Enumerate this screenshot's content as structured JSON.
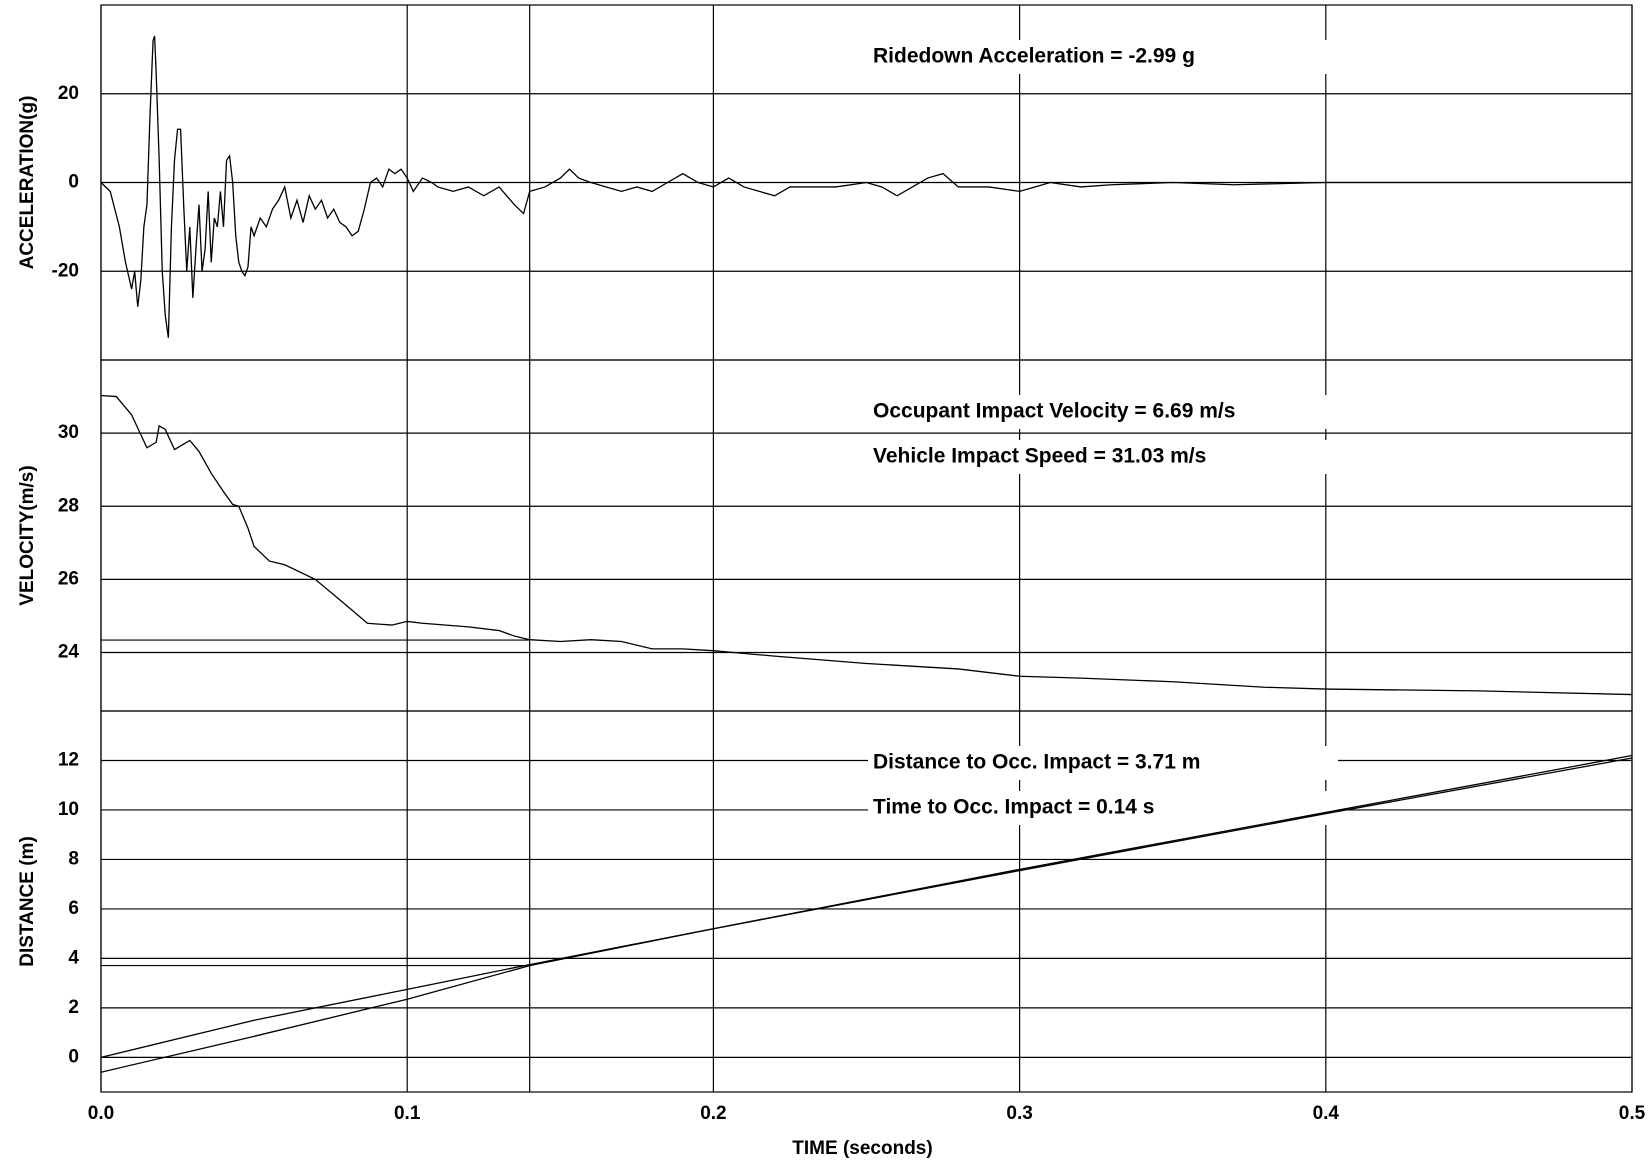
{
  "chart_data": [
    {
      "type": "line",
      "y_label": "ACCELERATION(g)",
      "annotations": [
        "Ridedown Acceleration = -2.99 g"
      ],
      "xlim": [
        0,
        0.5
      ],
      "ylim": [
        -40,
        40
      ],
      "yticks": [
        -20,
        0,
        20
      ],
      "grid": true,
      "reference": {
        "x": 0.14
      },
      "x": [
        0,
        0.003,
        0.006,
        0.008,
        0.01,
        0.011,
        0.012,
        0.013,
        0.014,
        0.015,
        0.016,
        0.017,
        0.0175,
        0.018,
        0.019,
        0.02,
        0.021,
        0.022,
        0.023,
        0.024,
        0.025,
        0.026,
        0.027,
        0.028,
        0.029,
        0.03,
        0.031,
        0.032,
        0.033,
        0.034,
        0.035,
        0.036,
        0.037,
        0.038,
        0.039,
        0.04,
        0.041,
        0.042,
        0.043,
        0.044,
        0.045,
        0.046,
        0.047,
        0.048,
        0.049,
        0.05,
        0.052,
        0.054,
        0.056,
        0.058,
        0.06,
        0.062,
        0.064,
        0.066,
        0.068,
        0.07,
        0.072,
        0.074,
        0.076,
        0.078,
        0.08,
        0.082,
        0.084,
        0.086,
        0.088,
        0.09,
        0.092,
        0.094,
        0.096,
        0.098,
        0.1,
        0.102,
        0.105,
        0.108,
        0.11,
        0.115,
        0.12,
        0.125,
        0.13,
        0.135,
        0.138,
        0.14,
        0.145,
        0.15,
        0.153,
        0.156,
        0.16,
        0.165,
        0.17,
        0.175,
        0.18,
        0.185,
        0.19,
        0.195,
        0.2,
        0.205,
        0.21,
        0.215,
        0.22,
        0.225,
        0.23,
        0.24,
        0.25,
        0.255,
        0.26,
        0.265,
        0.27,
        0.275,
        0.28,
        0.29,
        0.3,
        0.305,
        0.31,
        0.32,
        0.33,
        0.35,
        0.37,
        0.4,
        0.42,
        0.45,
        0.5
      ],
      "series": [
        {
          "color": "#000000",
          "values": [
            0,
            -2,
            -10,
            -18,
            -24,
            -20,
            -28,
            -22,
            -10,
            -5,
            15,
            32,
            33,
            25,
            5,
            -20,
            -30,
            -35,
            -10,
            5,
            12,
            12,
            -5,
            -20,
            -10,
            -26,
            -15,
            -5,
            -20,
            -15,
            -2,
            -18,
            -8,
            -10,
            -2,
            -10,
            5,
            6,
            0,
            -12,
            -18,
            -20,
            -21,
            -19,
            -10,
            -12,
            -8,
            -10,
            -6,
            -4,
            -1,
            -8,
            -4,
            -9,
            -3,
            -6,
            -4,
            -8,
            -6,
            -9,
            -10,
            -12,
            -11,
            -6,
            0,
            1,
            -1,
            3,
            2,
            3,
            1,
            -2,
            1,
            0,
            -1,
            -2,
            -1,
            -3,
            -1,
            -5,
            -7,
            -2,
            -1,
            1,
            3,
            1,
            0,
            -1,
            -2,
            -1,
            -2,
            0,
            2,
            0,
            -1,
            1,
            -1,
            -2,
            -3,
            -1,
            -1,
            -1,
            0,
            -1,
            -3,
            -1,
            1,
            2,
            -1,
            -1,
            -2,
            -1,
            0,
            -1,
            -0.5,
            0,
            -0.5,
            0,
            0,
            0,
            0
          ]
        }
      ]
    },
    {
      "type": "line",
      "y_label": "VELOCITY(m/s)",
      "annotations": [
        "Occupant Impact Velocity = 6.69 m/s",
        "Vehicle Impact Speed = 31.03 m/s"
      ],
      "xlim": [
        0,
        0.5
      ],
      "ylim": [
        22.4,
        32
      ],
      "yticks": [
        24,
        26,
        28,
        30
      ],
      "grid": true,
      "reference": {
        "x": 0.14,
        "y": 24.34
      },
      "x": [
        0,
        0.005,
        0.01,
        0.015,
        0.018,
        0.019,
        0.021,
        0.024,
        0.027,
        0.029,
        0.032,
        0.036,
        0.04,
        0.043,
        0.045,
        0.048,
        0.05,
        0.055,
        0.06,
        0.07,
        0.08,
        0.087,
        0.095,
        0.1,
        0.105,
        0.12,
        0.13,
        0.135,
        0.14,
        0.15,
        0.16,
        0.17,
        0.18,
        0.19,
        0.2,
        0.22,
        0.25,
        0.26,
        0.28,
        0.3,
        0.32,
        0.35,
        0.38,
        0.4,
        0.45,
        0.5
      ],
      "series": [
        {
          "color": "#000000",
          "values": [
            31.03,
            31.0,
            30.5,
            29.6,
            29.75,
            30.2,
            30.1,
            29.55,
            29.7,
            29.8,
            29.5,
            28.9,
            28.4,
            28.05,
            28.0,
            27.4,
            26.9,
            26.5,
            26.4,
            26.0,
            25.3,
            24.8,
            24.75,
            24.85,
            24.8,
            24.7,
            24.6,
            24.45,
            24.35,
            24.3,
            24.35,
            24.3,
            24.1,
            24.1,
            24.05,
            23.9,
            23.7,
            23.65,
            23.55,
            23.35,
            23.3,
            23.2,
            23.05,
            23.0,
            22.95,
            22.85
          ]
        }
      ]
    },
    {
      "type": "line",
      "y_label": "DISTANCE (m)",
      "x_label": "TIME (seconds)",
      "annotations": [
        "Distance to Occ. Impact = 3.71 m",
        "Time to Occ. Impact = 0.14 s"
      ],
      "xlim": [
        0,
        0.5
      ],
      "ylim": [
        -1.4,
        14
      ],
      "yticks": [
        0,
        2,
        4,
        6,
        8,
        10,
        12
      ],
      "xticks": [
        {
          "value": 0,
          "label": "0.0"
        },
        0.1,
        0.2,
        0.3,
        0.4,
        0.5
      ],
      "grid": true,
      "reference": {
        "x": 0.14,
        "y": 3.71
      },
      "x": [
        0,
        0.05,
        0.1,
        0.14,
        0.2,
        0.3,
        0.4,
        0.5
      ],
      "series": [
        {
          "color": "#000000",
          "values": [
            0,
            1.5,
            2.75,
            3.75,
            5.2,
            7.55,
            9.85,
            12.1
          ]
        },
        {
          "color": "#000000",
          "values": [
            -0.6,
            0.85,
            2.35,
            3.71,
            5.2,
            7.6,
            9.9,
            12.2
          ]
        }
      ]
    }
  ]
}
